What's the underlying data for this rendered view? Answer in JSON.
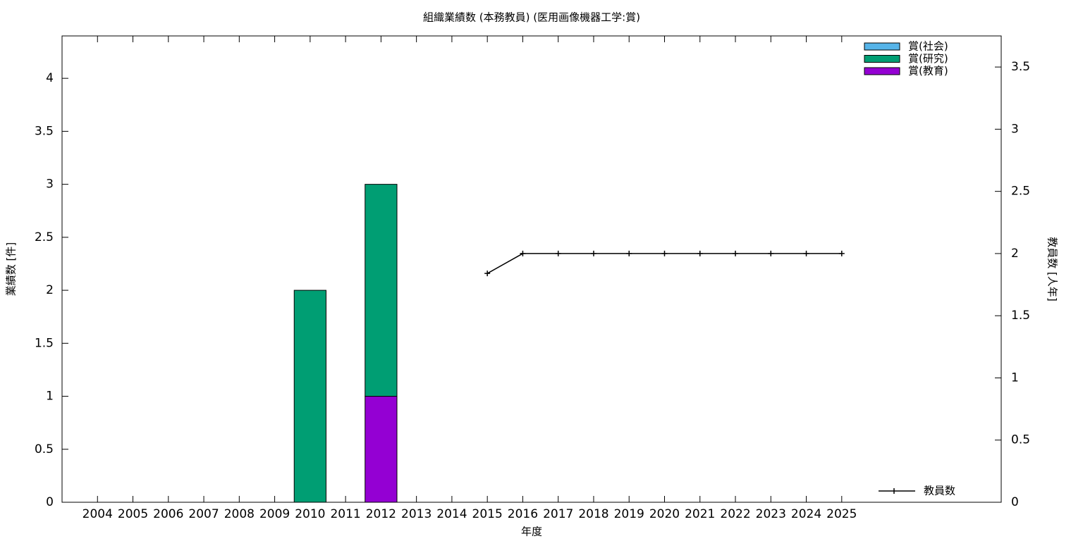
{
  "chart_data": {
    "type": "bar",
    "stacked": true,
    "title": "組織業績数 (本務教員) (医用画像機器工学:賞)",
    "x_label": "年度",
    "y_label": "業績数 [件]",
    "y2_label": "教員数 [人年]",
    "x": [
      2004,
      2005,
      2006,
      2007,
      2008,
      2009,
      2010,
      2011,
      2012,
      2013,
      2014,
      2015,
      2016,
      2017,
      2018,
      2019,
      2020,
      2021,
      2022,
      2023,
      2024,
      2025
    ],
    "xlim": [
      2003,
      2029.5
    ],
    "xticks": [
      2004,
      2005,
      2006,
      2007,
      2008,
      2009,
      2010,
      2011,
      2012,
      2013,
      2014,
      2015,
      2016,
      2017,
      2018,
      2019,
      2020,
      2021,
      2022,
      2023,
      2024,
      2025
    ],
    "ylim": [
      0,
      4.4
    ],
    "yticks": [
      0,
      0.5,
      1,
      1.5,
      2,
      2.5,
      3,
      3.5,
      4
    ],
    "y2lim": [
      0,
      3.75
    ],
    "y2ticks": [
      0,
      0.5,
      1,
      1.5,
      2,
      2.5,
      3,
      3.5
    ],
    "legend": "top right",
    "series": [
      {
        "name": "賞(社会)",
        "color": "#56b4e9",
        "values": [
          0,
          0,
          0,
          0,
          0,
          0,
          0,
          0,
          0,
          0,
          0,
          0,
          0,
          0,
          0,
          0,
          0,
          0,
          0,
          0,
          0,
          0
        ]
      },
      {
        "name": "賞(研究)",
        "color": "#009e73",
        "values": [
          0,
          0,
          0,
          0,
          0,
          0,
          2,
          0,
          2,
          0,
          0,
          0,
          0,
          0,
          0,
          0,
          0,
          0,
          0,
          0,
          0,
          0
        ]
      },
      {
        "name": "賞(教育)",
        "color": "#9400d3",
        "values": [
          0,
          0,
          0,
          0,
          0,
          0,
          0,
          0,
          1,
          0,
          0,
          0,
          0,
          0,
          0,
          0,
          0,
          0,
          0,
          0,
          0,
          0
        ]
      },
      {
        "name": "教員数",
        "type": "line",
        "axis": "y2",
        "color": "#000000",
        "values": [
          null,
          null,
          null,
          null,
          null,
          null,
          null,
          null,
          null,
          null,
          null,
          1.84,
          2,
          2,
          2,
          2,
          2,
          2,
          2,
          2,
          2,
          2
        ]
      }
    ]
  }
}
